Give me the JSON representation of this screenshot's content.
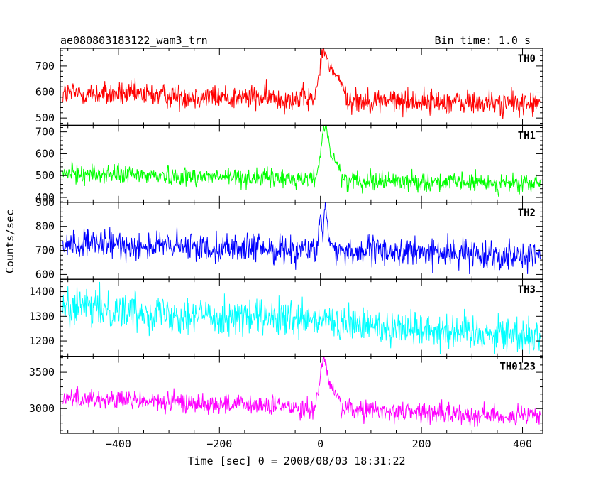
{
  "header": {
    "title": "ae080803183122_wam3_trn",
    "bin_time": "Bin time: 1.0 s"
  },
  "chart_data": {
    "type": "line",
    "xlabel": "Time [sec] 0 = 2008/08/03 18:31:22",
    "ylabel": "Counts/sec",
    "xlim": [
      -515,
      440
    ],
    "xticks": [
      -400,
      -200,
      0,
      200,
      400
    ],
    "xtick_labels": [
      "−400",
      "−200",
      "0",
      "200",
      "400"
    ],
    "panels": [
      {
        "name": "TH0",
        "color": "#ff0000",
        "ylim": [
          472,
          768
        ],
        "yticks": [
          500,
          600,
          700
        ],
        "baseline_start": 595,
        "baseline_end": 553,
        "noise": 24,
        "peak": 755,
        "decay_tau": 14,
        "burst": {
          "x": [
            -10,
            -5,
            0,
            3,
            6,
            10,
            15,
            20,
            30,
            40,
            50
          ],
          "y": [
            610,
            640,
            700,
            760,
            770,
            740,
            720,
            690,
            660,
            640,
            610
          ]
        }
      },
      {
        "name": "TH1",
        "color": "#00ff00",
        "ylim": [
          378,
          730
        ],
        "yticks": [
          400,
          500,
          600,
          700
        ],
        "baseline_start": 510,
        "baseline_end": 460,
        "noise": 22,
        "peak": 720,
        "decay_tau": 12,
        "burst": {
          "x": [
            -8,
            -4,
            0,
            3,
            6,
            10,
            15,
            20,
            30,
            40
          ],
          "y": [
            510,
            540,
            600,
            680,
            725,
            720,
            680,
            600,
            560,
            530
          ]
        }
      },
      {
        "name": "TH2",
        "color": "#0000ff",
        "ylim": [
          580,
          900
        ],
        "yticks": [
          600,
          700,
          800,
          900
        ],
        "baseline_start": 727,
        "baseline_end": 680,
        "noise": 30,
        "peak": 890,
        "decay_tau": 10,
        "burst": {
          "x": [
            -6,
            -3,
            0,
            2,
            5,
            8,
            10,
            12,
            15,
            20,
            30
          ],
          "y": [
            740,
            780,
            850,
            820,
            740,
            860,
            900,
            830,
            760,
            730,
            710
          ]
        }
      },
      {
        "name": "TH3",
        "color": "#00ffff",
        "ylim": [
          1138,
          1450
        ],
        "yticks": [
          1200,
          1300,
          1400
        ],
        "baseline_start": 1340,
        "baseline_end": 1220,
        "noise": 38,
        "peak": 1300,
        "decay_tau": 8,
        "burst": {
          "x": [
            0,
            10,
            20
          ],
          "y": [
            1280,
            1300,
            1280
          ]
        }
      },
      {
        "name": "TH0123",
        "color": "#ff00ff",
        "ylim": [
          2660,
          3720
        ],
        "yticks": [
          3000,
          3500
        ],
        "baseline_start": 3150,
        "baseline_end": 2880,
        "noise": 70,
        "peak": 3700,
        "decay_tau": 12,
        "burst": {
          "x": [
            -8,
            -4,
            0,
            3,
            6,
            10,
            15,
            20,
            30,
            40
          ],
          "y": [
            3150,
            3250,
            3450,
            3650,
            3700,
            3620,
            3450,
            3300,
            3200,
            3120
          ]
        }
      }
    ]
  }
}
